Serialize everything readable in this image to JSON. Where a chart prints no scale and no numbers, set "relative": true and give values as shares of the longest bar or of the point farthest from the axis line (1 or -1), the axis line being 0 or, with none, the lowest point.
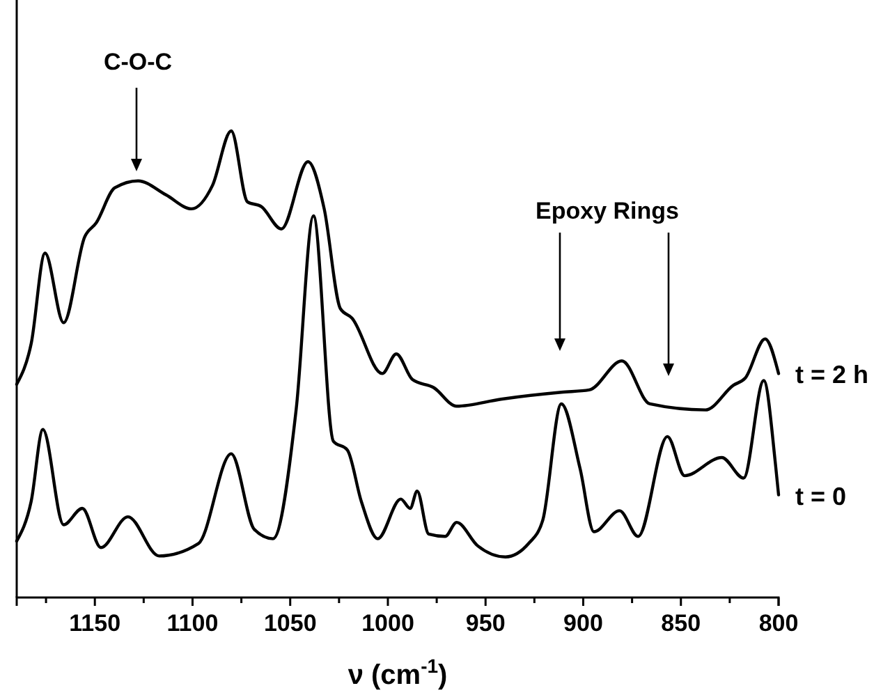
{
  "chart_data": {
    "type": "line",
    "relative": true,
    "xlabel": "ν (cm$^{-1}$)",
    "xlim": [
      1190,
      800
    ],
    "xticks": [
      {
        "value": 1175,
        "label": null
      },
      1150,
      {
        "value": 1125,
        "label": null
      },
      1100,
      {
        "value": 1075,
        "label": null
      },
      1050,
      {
        "value": 1025,
        "label": null
      },
      1000,
      {
        "value": 975,
        "label": null
      },
      950,
      {
        "value": 925,
        "label": null
      },
      900,
      {
        "value": 875,
        "label": null
      },
      850,
      {
        "value": 825,
        "label": null
      },
      800
    ],
    "tick_labels": "x",
    "grid": false,
    "legend": false,
    "line_style": "solid",
    "marker": "none",
    "series": [
      {
        "name": "t = 2 h",
        "color": "#000000",
        "x": [
          1190,
          1182.6,
          1175.5,
          1166,
          1155.2,
          1149.3,
          1139.8,
          1127.9,
          1113.6,
          1100.5,
          1089.8,
          1080.2,
          1071.9,
          1064.8,
          1054.5,
          1040.9,
          1032.6,
          1024.3,
          1018.4,
          1002.9,
          995.7,
          987.4,
          976.6,
          964.8,
          942.1,
          911.2,
          896.9,
          880.2,
          865.9,
          837.4,
          823.1,
          817.1,
          806.9,
          800
        ],
        "values": [
          0.457,
          0.544,
          0.738,
          0.589,
          0.773,
          0.803,
          0.878,
          0.893,
          0.863,
          0.833,
          0.883,
          1,
          0.848,
          0.838,
          0.79,
          0.934,
          0.833,
          0.619,
          0.599,
          0.48,
          0.522,
          0.467,
          0.45,
          0.41,
          0.425,
          0.44,
          0.445,
          0.507,
          0.415,
          0.402,
          0.455,
          0.47,
          0.554,
          0.48
        ]
      },
      {
        "name": "t = 0",
        "color": "#000000",
        "x": [
          1190,
          1182.6,
          1176.6,
          1166,
          1156.4,
          1146.9,
          1133.1,
          1117.1,
          1096.9,
          1080.2,
          1068.4,
          1058.8,
          1046.9,
          1038.1,
          1027.9,
          1020.7,
          1013.6,
          1005.2,
          993.4,
          988.6,
          985,
          979.1,
          970.7,
          964.8,
          954.1,
          939.8,
          927.9,
          920.7,
          911.2,
          901.6,
          894.5,
          881.4,
          871.9,
          856.9,
          848.1,
          829.1,
          817.9,
          807.6,
          801.6,
          800
        ],
        "values": [
          0.121,
          0.206,
          0.36,
          0.156,
          0.191,
          0.107,
          0.173,
          0.089,
          0.116,
          0.308,
          0.146,
          0.126,
          0.405,
          0.818,
          0.335,
          0.316,
          0.206,
          0.126,
          0.211,
          0.191,
          0.228,
          0.136,
          0.131,
          0.161,
          0.111,
          0.087,
          0.116,
          0.166,
          0.415,
          0.276,
          0.141,
          0.186,
          0.131,
          0.345,
          0.261,
          0.3,
          0.256,
          0.465,
          0.286,
          0.22
        ]
      }
    ],
    "annotations": [
      "C-O-C",
      "Epoxy Rings"
    ]
  }
}
